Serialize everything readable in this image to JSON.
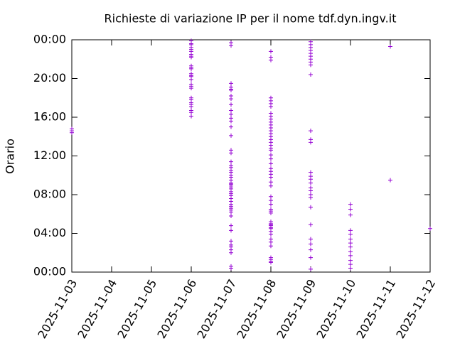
{
  "chart_data": {
    "type": "scatter",
    "title": "Richieste di variazione IP per il nome tdf.dyn.ingv.it",
    "y_label": "Orario",
    "xlim": [
      "2025-11-03",
      "2025-11-12"
    ],
    "xticks": [
      "2025-11-03",
      "2025-11-04",
      "2025-11-05",
      "2025-11-06",
      "2025-11-07",
      "2025-11-08",
      "2025-11-09",
      "2025-11-10",
      "2025-11-11",
      "2025-11-12"
    ],
    "ylim": [
      0,
      24
    ],
    "yticks": [
      {
        "value": 0,
        "label": "00:00"
      },
      {
        "value": 4,
        "label": "04:00"
      },
      {
        "value": 8,
        "label": "08:00"
      },
      {
        "value": 12,
        "label": "12:00"
      },
      {
        "value": 16,
        "label": "16:00"
      },
      {
        "value": 20,
        "label": "20:00"
      },
      {
        "value": 24,
        "label": "00:00"
      }
    ],
    "series": [
      {
        "color": "#9400d3",
        "x": [
          "2025-11-03",
          "2025-11-03",
          "2025-11-03",
          "2025-11-06",
          "2025-11-06",
          "2025-11-06",
          "2025-11-06",
          "2025-11-06",
          "2025-11-06",
          "2025-11-06",
          "2025-11-06",
          "2025-11-06",
          "2025-11-06",
          "2025-11-06",
          "2025-11-06",
          "2025-11-06",
          "2025-11-06",
          "2025-11-06",
          "2025-11-06",
          "2025-11-06",
          "2025-11-06",
          "2025-11-06",
          "2025-11-06",
          "2025-11-06",
          "2025-11-06",
          "2025-11-06",
          "2025-11-06",
          "2025-11-06",
          "2025-11-06",
          "2025-11-06",
          "2025-11-07",
          "2025-11-07",
          "2025-11-07",
          "2025-11-07",
          "2025-11-07",
          "2025-11-07",
          "2025-11-07",
          "2025-11-07",
          "2025-11-07",
          "2025-11-07",
          "2025-11-07",
          "2025-11-07",
          "2025-11-07",
          "2025-11-07",
          "2025-11-07",
          "2025-11-07",
          "2025-11-07",
          "2025-11-07",
          "2025-11-07",
          "2025-11-07",
          "2025-11-07",
          "2025-11-07",
          "2025-11-07",
          "2025-11-07",
          "2025-11-07",
          "2025-11-07",
          "2025-11-07",
          "2025-11-07",
          "2025-11-07",
          "2025-11-07",
          "2025-11-07",
          "2025-11-07",
          "2025-11-07",
          "2025-11-07",
          "2025-11-07",
          "2025-11-07",
          "2025-11-07",
          "2025-11-07",
          "2025-11-07",
          "2025-11-07",
          "2025-11-07",
          "2025-11-07",
          "2025-11-07",
          "2025-11-07",
          "2025-11-07",
          "2025-11-07",
          "2025-11-07",
          "2025-11-07",
          "2025-11-07",
          "2025-11-07",
          "2025-11-08",
          "2025-11-08",
          "2025-11-08",
          "2025-11-08",
          "2025-11-08",
          "2025-11-08",
          "2025-11-08",
          "2025-11-08",
          "2025-11-08",
          "2025-11-08",
          "2025-11-08",
          "2025-11-08",
          "2025-11-08",
          "2025-11-08",
          "2025-11-08",
          "2025-11-08",
          "2025-11-08",
          "2025-11-08",
          "2025-11-08",
          "2025-11-08",
          "2025-11-08",
          "2025-11-08",
          "2025-11-08",
          "2025-11-08",
          "2025-11-08",
          "2025-11-08",
          "2025-11-08",
          "2025-11-08",
          "2025-11-08",
          "2025-11-08",
          "2025-11-08",
          "2025-11-08",
          "2025-11-08",
          "2025-11-08",
          "2025-11-08",
          "2025-11-08",
          "2025-11-08",
          "2025-11-08",
          "2025-11-08",
          "2025-11-08",
          "2025-11-08",
          "2025-11-08",
          "2025-11-08",
          "2025-11-08",
          "2025-11-08",
          "2025-11-08",
          "2025-11-08",
          "2025-11-08",
          "2025-11-08",
          "2025-11-08",
          "2025-11-08",
          "2025-11-09",
          "2025-11-09",
          "2025-11-09",
          "2025-11-09",
          "2025-11-09",
          "2025-11-09",
          "2025-11-09",
          "2025-11-09",
          "2025-11-09",
          "2025-11-09",
          "2025-11-09",
          "2025-11-09",
          "2025-11-09",
          "2025-11-09",
          "2025-11-09",
          "2025-11-09",
          "2025-11-09",
          "2025-11-09",
          "2025-11-09",
          "2025-11-09",
          "2025-11-09",
          "2025-11-09",
          "2025-11-09",
          "2025-11-09",
          "2025-11-09",
          "2025-11-09",
          "2025-11-09",
          "2025-11-09",
          "2025-11-10",
          "2025-11-10",
          "2025-11-10",
          "2025-11-10",
          "2025-11-10",
          "2025-11-10",
          "2025-11-10",
          "2025-11-10",
          "2025-11-10",
          "2025-11-10",
          "2025-11-10",
          "2025-11-10",
          "2025-11-10",
          "2025-11-11",
          "2025-11-11",
          "2025-11-12"
        ],
        "values": [
          14.8,
          14.6,
          14.4,
          23.9,
          23.6,
          23.5,
          23.2,
          23.0,
          22.8,
          22.5,
          22.3,
          22.2,
          21.3,
          21.1,
          21.0,
          20.5,
          20.3,
          20.2,
          19.9,
          19.4,
          19.2,
          19.0,
          18.0,
          17.8,
          17.5,
          17.3,
          17.1,
          16.7,
          16.5,
          16.1,
          23.7,
          23.4,
          19.5,
          19.1,
          18.9,
          18.8,
          18.2,
          17.9,
          17.3,
          16.7,
          16.3,
          15.9,
          15.6,
          15.0,
          14.1,
          12.6,
          12.3,
          11.4,
          11.0,
          10.8,
          10.5,
          10.3,
          10.0,
          9.8,
          9.5,
          9.2,
          9.1,
          9.0,
          8.8,
          8.6,
          8.3,
          8.1,
          7.9,
          7.6,
          7.3,
          7.0,
          6.8,
          6.6,
          6.4,
          6.2,
          5.8,
          4.8,
          4.3,
          3.2,
          2.8,
          2.6,
          2.3,
          2.0,
          0.6,
          0.4,
          22.8,
          22.2,
          21.9,
          18.0,
          17.7,
          17.4,
          17.1,
          16.4,
          16.1,
          15.8,
          15.5,
          15.2,
          14.9,
          14.6,
          14.3,
          14.0,
          13.7,
          13.4,
          13.1,
          12.8,
          12.6,
          12.1,
          11.7,
          11.2,
          10.7,
          10.4,
          10.1,
          9.8,
          9.3,
          8.9,
          7.8,
          7.4,
          7.0,
          6.5,
          6.3,
          6.1,
          5.2,
          5.0,
          4.9,
          4.8,
          4.6,
          4.5,
          4.2,
          3.9,
          3.4,
          3.1,
          2.7,
          1.5,
          1.3,
          1.1,
          1.0,
          23.8,
          23.5,
          23.2,
          22.9,
          22.6,
          22.3,
          22.0,
          21.7,
          21.4,
          20.4,
          14.6,
          13.7,
          13.4,
          10.3,
          9.9,
          9.6,
          9.2,
          8.7,
          8.4,
          8.0,
          7.7,
          6.7,
          4.9,
          3.4,
          2.9,
          2.3,
          1.5,
          0.3,
          7.0,
          6.5,
          5.9,
          4.3,
          3.9,
          3.4,
          3.0,
          2.6,
          2.1,
          1.7,
          1.2,
          0.8,
          0.4,
          23.3,
          9.5,
          4.5
        ]
      }
    ]
  }
}
